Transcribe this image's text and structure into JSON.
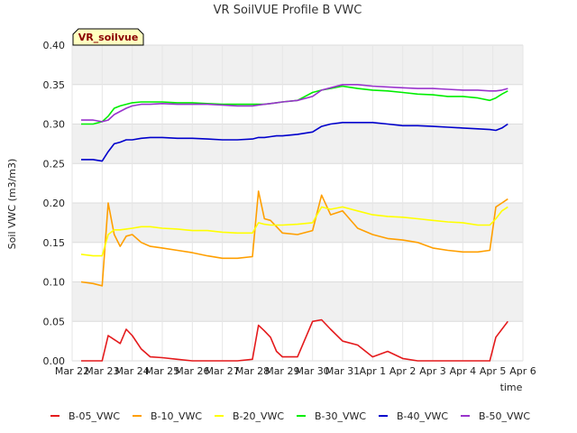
{
  "chart_data": {
    "type": "line",
    "title": "VR SoilVUE Profile B VWC",
    "tag": "VR_soilvue",
    "xlabel": "time",
    "ylabel": "Soil VWC (m3/m3)",
    "ylim": [
      0.0,
      0.4
    ],
    "yticks": [
      "0.00",
      "0.05",
      "0.10",
      "0.15",
      "0.20",
      "0.25",
      "0.30",
      "0.35",
      "0.40"
    ],
    "xlim": [
      0,
      15
    ],
    "xticks": [
      "Mar 22",
      "Mar 23",
      "Mar 24",
      "Mar 25",
      "Mar 26",
      "Mar 27",
      "Mar 28",
      "Mar 29",
      "Mar 30",
      "Mar 31",
      "Apr 1",
      "Apr 2",
      "Apr 3",
      "Apr 4",
      "Apr 5",
      "Apr 6"
    ],
    "grid": true,
    "legend_position": "bottom",
    "x": [
      0.3,
      0.7,
      1.0,
      1.2,
      1.4,
      1.6,
      1.8,
      2.0,
      2.3,
      2.6,
      3.0,
      3.5,
      4.0,
      4.5,
      5.0,
      5.5,
      6.0,
      6.2,
      6.4,
      6.6,
      6.8,
      7.0,
      7.5,
      8.0,
      8.3,
      8.6,
      9.0,
      9.5,
      10.0,
      10.5,
      11.0,
      11.5,
      12.0,
      12.5,
      13.0,
      13.5,
      13.9,
      14.1,
      14.3,
      14.5
    ],
    "series": [
      {
        "name": "B-05_VWC",
        "color": "#e41a1c",
        "values": [
          0.0,
          0.0,
          0.0,
          0.032,
          0.027,
          0.022,
          0.04,
          0.032,
          0.015,
          0.005,
          0.004,
          0.002,
          0.0,
          0.0,
          0.0,
          0.0,
          0.002,
          0.045,
          0.038,
          0.03,
          0.012,
          0.005,
          0.005,
          0.05,
          0.052,
          0.04,
          0.025,
          0.02,
          0.005,
          0.012,
          0.003,
          0.0,
          0.0,
          0.0,
          0.0,
          0.0,
          0.0,
          0.03,
          0.04,
          0.05
        ]
      },
      {
        "name": "B-10_VWC",
        "color": "#ff9f00",
        "values": [
          0.1,
          0.098,
          0.095,
          0.2,
          0.16,
          0.145,
          0.158,
          0.16,
          0.15,
          0.145,
          0.143,
          0.14,
          0.137,
          0.133,
          0.13,
          0.13,
          0.132,
          0.215,
          0.18,
          0.178,
          0.17,
          0.162,
          0.16,
          0.165,
          0.21,
          0.185,
          0.19,
          0.168,
          0.16,
          0.155,
          0.153,
          0.15,
          0.143,
          0.14,
          0.138,
          0.138,
          0.14,
          0.195,
          0.2,
          0.205
        ]
      },
      {
        "name": "B-20_VWC",
        "color": "#ffff00",
        "values": [
          0.135,
          0.133,
          0.133,
          0.16,
          0.166,
          0.166,
          0.167,
          0.168,
          0.17,
          0.17,
          0.168,
          0.167,
          0.165,
          0.165,
          0.163,
          0.162,
          0.162,
          0.175,
          0.173,
          0.172,
          0.172,
          0.172,
          0.173,
          0.175,
          0.195,
          0.192,
          0.195,
          0.19,
          0.185,
          0.183,
          0.182,
          0.18,
          0.178,
          0.176,
          0.175,
          0.172,
          0.172,
          0.18,
          0.19,
          0.195
        ]
      },
      {
        "name": "B-30_VWC",
        "color": "#00ee00",
        "values": [
          0.3,
          0.3,
          0.303,
          0.31,
          0.32,
          0.323,
          0.325,
          0.327,
          0.328,
          0.328,
          0.328,
          0.327,
          0.327,
          0.326,
          0.325,
          0.325,
          0.325,
          0.325,
          0.325,
          0.326,
          0.327,
          0.328,
          0.33,
          0.34,
          0.343,
          0.345,
          0.348,
          0.345,
          0.343,
          0.342,
          0.34,
          0.338,
          0.337,
          0.335,
          0.335,
          0.333,
          0.33,
          0.333,
          0.338,
          0.342
        ]
      },
      {
        "name": "B-40_VWC",
        "color": "#0000cc",
        "values": [
          0.255,
          0.255,
          0.253,
          0.265,
          0.275,
          0.277,
          0.28,
          0.28,
          0.282,
          0.283,
          0.283,
          0.282,
          0.282,
          0.281,
          0.28,
          0.28,
          0.281,
          0.283,
          0.283,
          0.284,
          0.285,
          0.285,
          0.287,
          0.29,
          0.297,
          0.3,
          0.302,
          0.302,
          0.302,
          0.3,
          0.298,
          0.298,
          0.297,
          0.296,
          0.295,
          0.294,
          0.293,
          0.292,
          0.295,
          0.3
        ]
      },
      {
        "name": "B-50_VWC",
        "color": "#9933cc",
        "values": [
          0.305,
          0.305,
          0.303,
          0.305,
          0.312,
          0.316,
          0.32,
          0.323,
          0.325,
          0.325,
          0.326,
          0.325,
          0.325,
          0.325,
          0.324,
          0.323,
          0.323,
          0.324,
          0.325,
          0.326,
          0.327,
          0.328,
          0.33,
          0.335,
          0.343,
          0.346,
          0.35,
          0.35,
          0.348,
          0.347,
          0.346,
          0.345,
          0.345,
          0.344,
          0.343,
          0.343,
          0.342,
          0.342,
          0.343,
          0.345
        ]
      }
    ]
  }
}
